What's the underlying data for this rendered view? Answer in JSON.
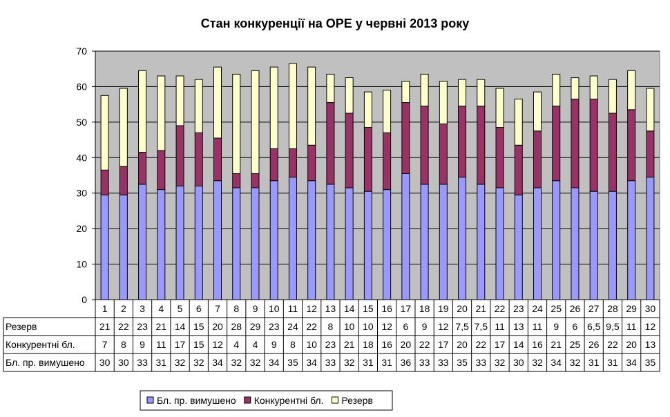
{
  "chart_data": {
    "type": "bar",
    "stacked": true,
    "title": "Стан конкуренції на ОРЕ  у червні 2013 року",
    "categories": [
      "1",
      "2",
      "3",
      "4",
      "5",
      "6",
      "7",
      "8",
      "9",
      "10",
      "11",
      "12",
      "13",
      "14",
      "15",
      "16",
      "17",
      "18",
      "19",
      "20",
      "21",
      "22",
      "23",
      "24",
      "25",
      "26",
      "27",
      "28",
      "29",
      "30"
    ],
    "ylim": [
      0,
      70
    ],
    "yticks": [
      0,
      10,
      20,
      30,
      40,
      50,
      60,
      70
    ],
    "grid": true,
    "plot_background": "#c0c0c0",
    "legend_position": "bottom",
    "series": [
      {
        "name": "Бл. пр. вимушено",
        "color": "#9999ff",
        "values": [
          29.5,
          29.5,
          32.5,
          31,
          32,
          32,
          33.5,
          31.5,
          31.5,
          33.5,
          34.5,
          33.5,
          32.5,
          31.5,
          30.5,
          31,
          35.5,
          32.5,
          32.5,
          34.5,
          32.5,
          31.5,
          29.5,
          31.5,
          33.5,
          31.5,
          30.5,
          30.5,
          33.5,
          34.5
        ],
        "labels": [
          "30",
          "30",
          "33",
          "31",
          "32",
          "32",
          "34",
          "32",
          "32",
          "34",
          "35",
          "34",
          "33",
          "32",
          "31",
          "31",
          "36",
          "33",
          "33",
          "35",
          "33",
          "32",
          "30",
          "32",
          "34",
          "32",
          "31",
          "31",
          "34",
          "35"
        ]
      },
      {
        "name": "Конкурентні бл.",
        "color": "#993366",
        "values": [
          7,
          8,
          9,
          11,
          17,
          15,
          12,
          4,
          4,
          9,
          8,
          10,
          23,
          21,
          18,
          16,
          20,
          22,
          17,
          20,
          22,
          17,
          14,
          16,
          21,
          25,
          26,
          22,
          20,
          13
        ],
        "labels": [
          "7",
          "8",
          "9",
          "11",
          "17",
          "15",
          "12",
          "4",
          "4",
          "9",
          "8",
          "10",
          "23",
          "21",
          "18",
          "16",
          "20",
          "22",
          "17",
          "20",
          "22",
          "17",
          "14",
          "16",
          "21",
          "25",
          "26",
          "22",
          "20",
          "13"
        ]
      },
      {
        "name": "Резерв",
        "color": "#ffffcc",
        "values": [
          21,
          22,
          23,
          21,
          14,
          15,
          20,
          28,
          29,
          23,
          24,
          22,
          8,
          10,
          10,
          12,
          6,
          9,
          12,
          7.5,
          7.5,
          11,
          13,
          11,
          9,
          6,
          6.5,
          9.5,
          11,
          12
        ],
        "labels": [
          "21",
          "22",
          "23",
          "21",
          "14",
          "15",
          "20",
          "28",
          "29",
          "23",
          "24",
          "22",
          "8",
          "10",
          "10",
          "12",
          "6",
          "9",
          "12",
          "7,5",
          "7,5",
          "11",
          "13",
          "11",
          "9",
          "6",
          "6,5",
          "9,5",
          "11",
          "12"
        ]
      }
    ],
    "table_row_order": [
      "Резерв",
      "Конкурентні бл.",
      "Бл. пр. вимушено"
    ]
  }
}
